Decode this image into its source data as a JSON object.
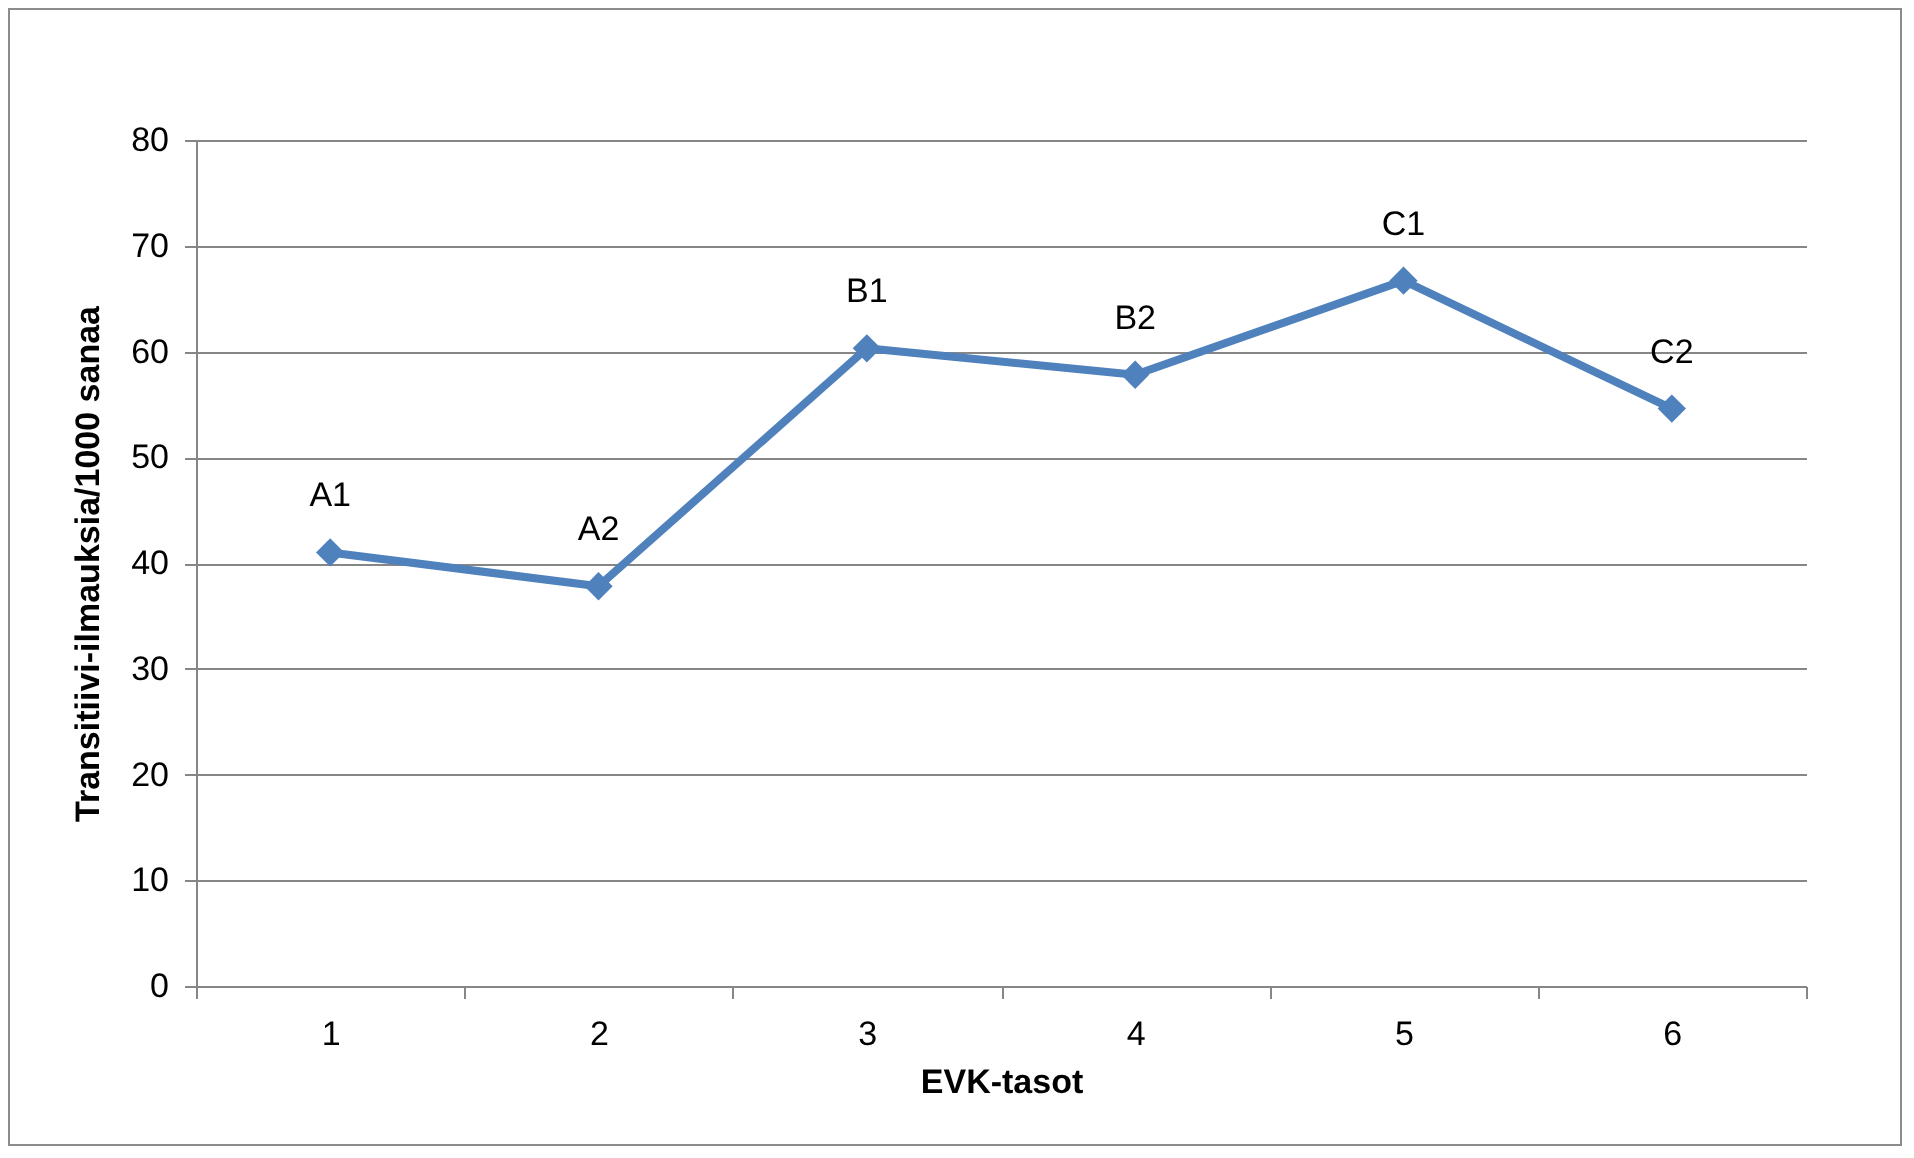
{
  "chart_data": {
    "type": "line",
    "xlabel": "EVK-tasot",
    "ylabel": "Transitiivi-ilmauksia/1000 sanaa",
    "categories": [
      "1",
      "2",
      "3",
      "4",
      "5",
      "6"
    ],
    "series": [
      {
        "color": "#4f81bd",
        "values": [
          41.0,
          37.8,
          60.3,
          57.8,
          66.7,
          54.6
        ]
      }
    ],
    "ylim": [
      0,
      80
    ],
    "yticks": [
      0,
      10,
      20,
      30,
      40,
      50,
      60,
      70,
      80
    ],
    "grid": "y",
    "marker": "diamond",
    "line_style": "solid",
    "annotations": [
      {
        "text": "A1",
        "x": "1",
        "y": 41.0
      },
      {
        "text": "A2",
        "x": "2",
        "y": 37.8
      },
      {
        "text": "B1",
        "x": "3",
        "y": 60.3
      },
      {
        "text": "B2",
        "x": "4",
        "y": 57.8
      },
      {
        "text": "C1",
        "x": "5",
        "y": 66.7
      },
      {
        "text": "C2",
        "x": "6",
        "y": 54.6
      }
    ]
  }
}
